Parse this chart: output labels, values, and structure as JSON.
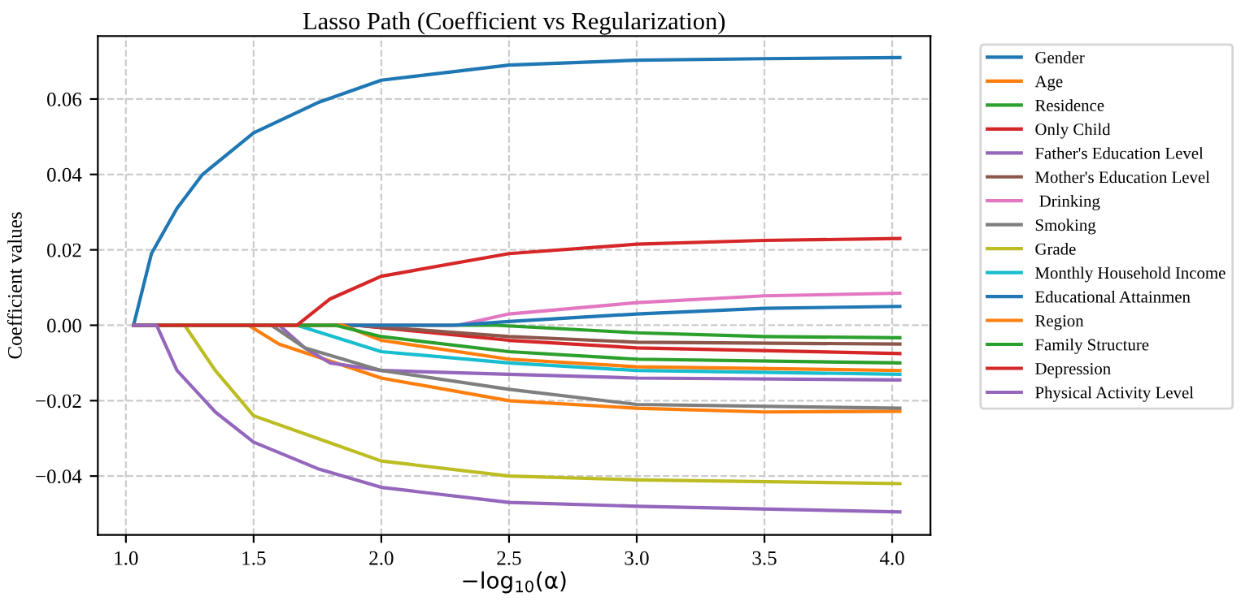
{
  "chart_data": {
    "type": "line",
    "title": "Lasso Path (Coefficient vs Regularization)",
    "xlabel": "−log$_{10}$(α)",
    "ylabel": "Coefficient values",
    "xlim": [
      0.89,
      4.15
    ],
    "ylim": [
      -0.0556,
      0.0767
    ],
    "xticks": [
      {
        "value": 1,
        "label": "1.0"
      },
      1.5,
      {
        "value": 2,
        "label": "2.0"
      },
      2.5,
      {
        "value": 3,
        "label": "3.0"
      },
      3.5,
      {
        "value": 4,
        "label": "4.0"
      }
    ],
    "yticks": [
      {
        "value": -0.04,
        "label": "−0.04"
      },
      {
        "value": -0.02,
        "label": "−0.02"
      },
      {
        "value": 0,
        "label": "0.00"
      },
      {
        "value": 0.02,
        "label": "0.02"
      },
      {
        "value": 0.04,
        "label": "0.04"
      },
      {
        "value": 0.06,
        "label": "0.06"
      }
    ],
    "grid": true,
    "legend": "top right",
    "marker": "none",
    "line_style": "solid",
    "series": [
      {
        "name": "Gender",
        "color": "#1f77b4",
        "x": [
          1.03,
          1.1,
          1.2,
          1.3,
          1.5,
          1.75,
          2.0,
          2.5,
          3.0,
          3.5,
          4.03
        ],
        "values": [
          0,
          0.019,
          0.031,
          0.04,
          0.051,
          0.059,
          0.065,
          0.069,
          0.0703,
          0.0707,
          0.071
        ]
      },
      {
        "name": "Age",
        "color": "#ff7f0e",
        "x": [
          1.03,
          1.48,
          1.6,
          2.0,
          2.5,
          3.0,
          3.5,
          4.03
        ],
        "values": [
          0,
          0,
          -0.005,
          -0.014,
          -0.02,
          -0.022,
          -0.023,
          -0.0228
        ]
      },
      {
        "name": "Residence",
        "color": "#2ca02c",
        "x": [
          1.03,
          2.45,
          3.0,
          3.5,
          4.03
        ],
        "values": [
          0,
          0,
          -0.002,
          -0.003,
          -0.0033
        ]
      },
      {
        "name": "Only Child",
        "color": "#d62728",
        "x": [
          1.03,
          1.9,
          2.5,
          3.0,
          4.03
        ],
        "values": [
          0,
          0,
          -0.004,
          -0.006,
          -0.0075
        ]
      },
      {
        "name": "Father's Education Level",
        "color": "#9467bd",
        "x": [
          1.03,
          1.6,
          1.7,
          1.8,
          2.0,
          2.5,
          3.0,
          4.03
        ],
        "values": [
          0,
          0,
          -0.006,
          -0.01,
          -0.012,
          -0.013,
          -0.014,
          -0.0145
        ]
      },
      {
        "name": "Mother's Education Level",
        "color": "#8c564b",
        "x": [
          1.03,
          1.9,
          2.5,
          3.0,
          4.03
        ],
        "values": [
          0,
          0,
          -0.003,
          -0.0045,
          -0.005
        ]
      },
      {
        "name": " Drinking",
        "color": "#e377c2",
        "x": [
          1.03,
          2.3,
          2.5,
          3.0,
          3.5,
          4.03
        ],
        "values": [
          0,
          0,
          0.003,
          0.006,
          0.0078,
          0.0085
        ]
      },
      {
        "name": "Smoking",
        "color": "#7f7f7f",
        "x": [
          1.03,
          1.57,
          1.7,
          2.0,
          2.5,
          3.0,
          4.03
        ],
        "values": [
          0,
          0,
          -0.006,
          -0.012,
          -0.017,
          -0.021,
          -0.022
        ]
      },
      {
        "name": "Grade",
        "color": "#bcbd22",
        "x": [
          1.03,
          1.23,
          1.35,
          1.5,
          1.75,
          2.0,
          2.5,
          3.0,
          4.03
        ],
        "values": [
          0,
          0,
          -0.012,
          -0.024,
          -0.03,
          -0.036,
          -0.04,
          -0.041,
          -0.042
        ]
      },
      {
        "name": "Monthly Household Income",
        "color": "#17becf",
        "x": [
          1.03,
          1.67,
          2.0,
          2.5,
          3.0,
          4.03
        ],
        "values": [
          0,
          0,
          -0.007,
          -0.01,
          -0.012,
          -0.013
        ]
      },
      {
        "name": "Educational Attainmen",
        "color": "#1f77b4",
        "x": [
          1.03,
          2.28,
          2.5,
          3.0,
          3.5,
          4.03
        ],
        "values": [
          0,
          0,
          0.001,
          0.003,
          0.0045,
          0.005
        ]
      },
      {
        "name": "Region",
        "color": "#ff7f0e",
        "x": [
          1.03,
          1.85,
          2.0,
          2.5,
          3.0,
          4.03
        ],
        "values": [
          0,
          0,
          -0.004,
          -0.009,
          -0.011,
          -0.012
        ]
      },
      {
        "name": "Family Structure",
        "color": "#2ca02c",
        "x": [
          1.03,
          1.82,
          2.0,
          2.5,
          3.0,
          4.03
        ],
        "values": [
          0,
          0,
          -0.003,
          -0.007,
          -0.009,
          -0.01
        ]
      },
      {
        "name": "Depression",
        "color": "#d62728",
        "x": [
          1.03,
          1.67,
          1.8,
          2.0,
          2.5,
          3.0,
          3.5,
          4.03
        ],
        "values": [
          0,
          0,
          0.007,
          0.013,
          0.019,
          0.0215,
          0.0225,
          0.023
        ]
      },
      {
        "name": "Physical Activity Level",
        "color": "#9467bd",
        "x": [
          1.03,
          1.12,
          1.2,
          1.35,
          1.5,
          1.75,
          2.0,
          2.5,
          3.0,
          4.03
        ],
        "values": [
          0,
          0,
          -0.012,
          -0.023,
          -0.031,
          -0.038,
          -0.043,
          -0.047,
          -0.048,
          -0.0495
        ]
      }
    ]
  }
}
